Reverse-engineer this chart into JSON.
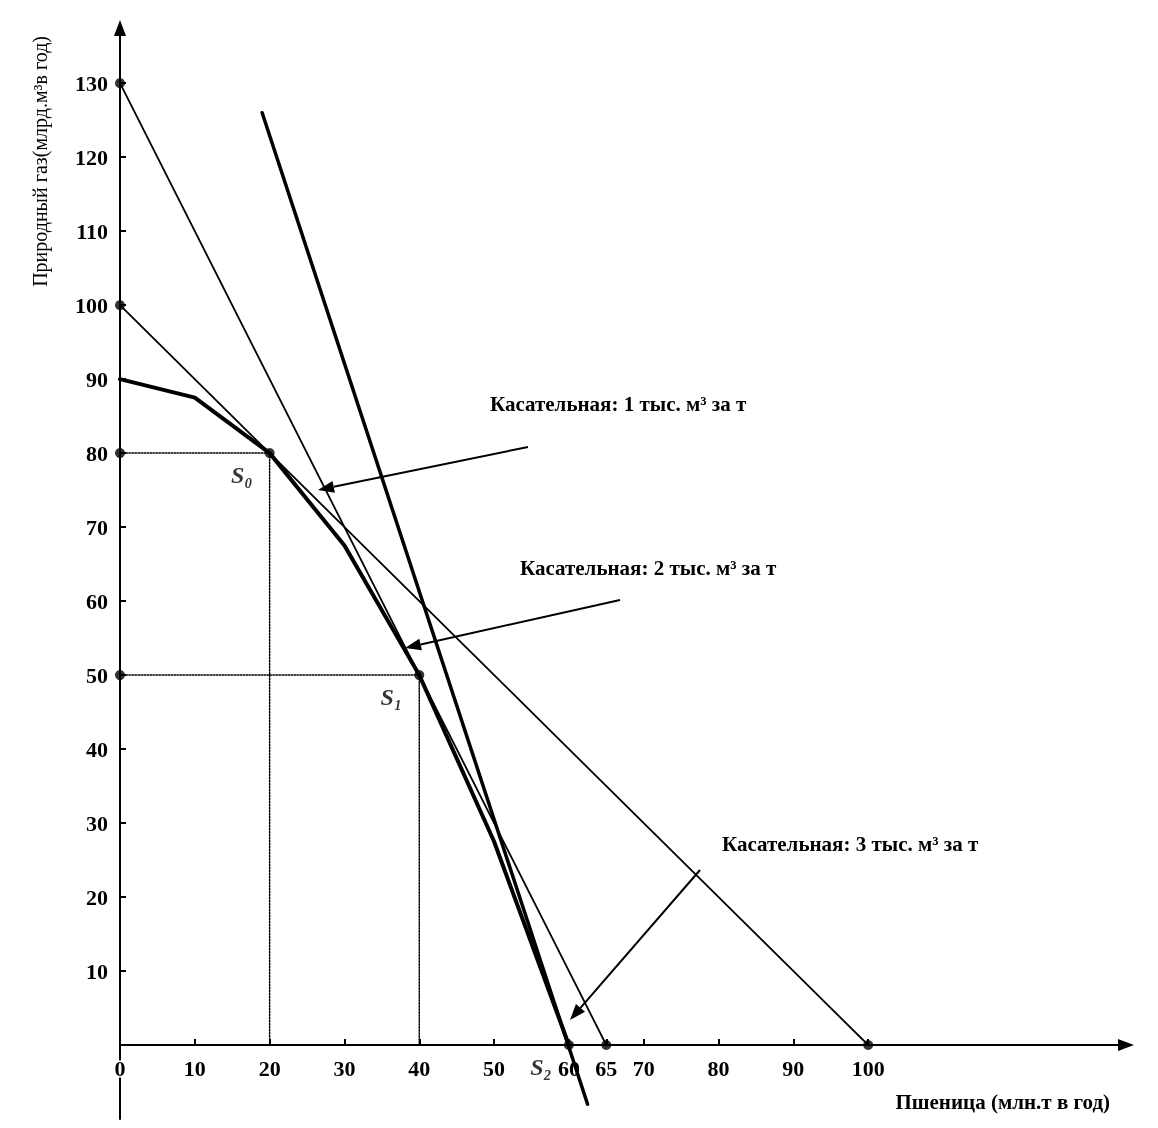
{
  "chart_data": {
    "type": "line",
    "xlabel": "Пшеница (млн.т в год)",
    "ylabel": "Природный газ(млрд.м³в год)",
    "xlim": [
      0,
      135
    ],
    "ylim": [
      -10,
      138
    ],
    "xticks": [
      0,
      10,
      20,
      30,
      40,
      50,
      60,
      65,
      70,
      80,
      90,
      100
    ],
    "yticks": [
      10,
      20,
      30,
      40,
      50,
      60,
      70,
      80,
      90,
      100,
      110,
      120,
      130
    ],
    "grid": false,
    "series": [
      {
        "color": "#000000",
        "marker": "none",
        "line_style": "solid",
        "x": [
          0,
          10,
          20,
          30,
          40,
          50,
          60
        ],
        "values": [
          90,
          87.5,
          80,
          67.5,
          50,
          27.5,
          0
        ]
      },
      {
        "color": "#000000",
        "marker": "none",
        "line_style": "solid",
        "x": [
          0,
          100
        ],
        "values": [
          100,
          0
        ]
      },
      {
        "color": "#000000",
        "marker": "none",
        "line_style": "solid",
        "x": [
          0,
          65
        ],
        "values": [
          130,
          0
        ]
      },
      {
        "color": "#000000",
        "marker": "none",
        "line_style": "solid",
        "x": [
          19,
          62.5
        ],
        "values": [
          126,
          -8
        ]
      },
      {
        "color": "#000000",
        "marker": "none",
        "line_style": "dotted",
        "x": [
          0,
          20,
          20
        ],
        "values": [
          80,
          80,
          0
        ]
      },
      {
        "color": "#000000",
        "marker": "none",
        "line_style": "dotted",
        "x": [
          0,
          40,
          40
        ],
        "values": [
          50,
          50,
          0
        ]
      },
      {
        "type": "scatter",
        "color": "#000000",
        "marker": "circle",
        "x": [
          0,
          0,
          0,
          0,
          20,
          40,
          60,
          65,
          100
        ],
        "values": [
          130,
          100,
          80,
          50,
          80,
          50,
          0,
          0,
          0
        ],
        "value_labels": [
          null,
          null,
          null,
          null,
          "S₀",
          "S₁",
          "S₂",
          null,
          null
        ]
      }
    ],
    "annotations": [
      "Касательная: 1 тыс. м³ за т",
      "Касательная: 2 тыс. м³ за т",
      "Касательная: 3 тыс. м³ за т"
    ]
  }
}
